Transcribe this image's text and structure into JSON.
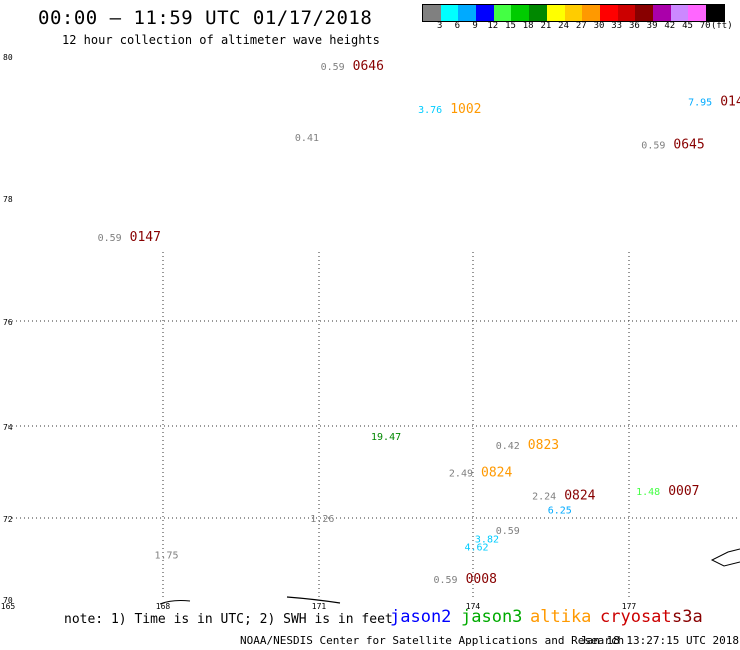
{
  "header": {
    "title": "00:00 — 11:59 UTC 01/17/2018",
    "subtitle": "12 hour collection of altimeter wave heights"
  },
  "color_scale": {
    "unit": "(ft)",
    "ticks": [
      "3",
      "6",
      "9",
      "12",
      "15",
      "18",
      "21",
      "24",
      "27",
      "30",
      "33",
      "36",
      "39",
      "42",
      "45",
      "70"
    ],
    "colors": [
      "#808080",
      "#00ffff",
      "#00aaff",
      "#0000ff",
      "#44ff44",
      "#00cc00",
      "#008800",
      "#ffff00",
      "#ffcc00",
      "#ff9900",
      "#ff0000",
      "#cc0000",
      "#880000",
      "#aa00aa",
      "#cc88ff",
      "#ff66ff",
      "#000000"
    ]
  },
  "map": {
    "lon_ticks": [
      "165",
      "168",
      "171",
      "174",
      "177"
    ],
    "lat_ticks": [
      "80",
      "78",
      "76",
      "74",
      "72",
      "70"
    ],
    "lon_range": [
      165,
      179.2
    ],
    "lat_range": [
      70,
      80
    ]
  },
  "observations": [
    {
      "swh": "0.59",
      "time": "0646",
      "lon": 171.5,
      "lat": 79.8,
      "swh_color": "#808080",
      "time_color": "#880000"
    },
    {
      "swh": "3.76",
      "time": "1002",
      "lon": 173.4,
      "lat": 79.2,
      "swh_color": "#00ccff",
      "time_color": "#ff9900"
    },
    {
      "swh": "7.95",
      "time": "014",
      "lon": 178.6,
      "lat": 79.3,
      "swh_color": "#00aaff",
      "time_color": "#880000"
    },
    {
      "swh": "0.41",
      "time": "",
      "lon": 171.0,
      "lat": 78.8,
      "swh_color": "#808080",
      "time_color": "#880000"
    },
    {
      "swh": "0.59",
      "time": "0645",
      "lon": 177.7,
      "lat": 78.7,
      "swh_color": "#808080",
      "time_color": "#880000"
    },
    {
      "swh": "0.59",
      "time": "0147",
      "lon": 167.2,
      "lat": 77.3,
      "swh_color": "#808080",
      "time_color": "#880000"
    },
    {
      "swh": "19.47",
      "time": "",
      "lon": 172.6,
      "lat": 73.7,
      "swh_color": "#008800",
      "time_color": "#880000"
    },
    {
      "swh": "0.42",
      "time": "0823",
      "lon": 174.9,
      "lat": 73.5,
      "swh_color": "#808080",
      "time_color": "#ff9900"
    },
    {
      "swh": "2.49",
      "time": "0824",
      "lon": 174.0,
      "lat": 72.9,
      "swh_color": "#808080",
      "time_color": "#ff9900"
    },
    {
      "swh": "2.24",
      "time": "0824",
      "lon": 175.6,
      "lat": 72.4,
      "swh_color": "#808080",
      "time_color": "#880000"
    },
    {
      "swh": "1.48",
      "time": "0007",
      "lon": 177.6,
      "lat": 72.5,
      "swh_color": "#44ff44",
      "time_color": "#880000"
    },
    {
      "swh": "6.25",
      "time": "",
      "lon": 175.9,
      "lat": 72.1,
      "swh_color": "#00aaff",
      "time_color": "#880000"
    },
    {
      "swh": "1.26",
      "time": "",
      "lon": 171.3,
      "lat": 71.9,
      "swh_color": "#808080",
      "time_color": "#880000"
    },
    {
      "swh": "0.59",
      "time": "",
      "lon": 174.9,
      "lat": 71.6,
      "swh_color": "#808080",
      "time_color": "#880000"
    },
    {
      "swh": "3.82",
      "time": "",
      "lon": 174.5,
      "lat": 71.4,
      "swh_color": "#00ccff",
      "time_color": "#880000"
    },
    {
      "swh": "4.62",
      "time": "",
      "lon": 174.3,
      "lat": 71.2,
      "swh_color": "#00ccff",
      "time_color": "#880000"
    },
    {
      "swh": "1.75",
      "time": "",
      "lon": 168.3,
      "lat": 71.0,
      "swh_color": "#808080",
      "time_color": "#880000"
    },
    {
      "swh": "0.59",
      "time": "0008",
      "lon": 173.7,
      "lat": 70.4,
      "swh_color": "#808080",
      "time_color": "#880000"
    }
  ],
  "footer": {
    "note": "note: 1) Time is in UTC; 2) SWH is in feet",
    "satellites": [
      {
        "name": "jason2",
        "color": "#0000ff"
      },
      {
        "name": "jason3",
        "color": "#00aa00"
      },
      {
        "name": "altika",
        "color": "#ff9900"
      },
      {
        "name": "cryosat",
        "color": "#cc0000"
      },
      {
        "name": "s3a",
        "color": "#880000"
      }
    ],
    "credit": "NOAA/NESDIS Center for Satellite Applications and Research",
    "timestamp": "Jan 18 13:27:15 UTC 2018"
  }
}
